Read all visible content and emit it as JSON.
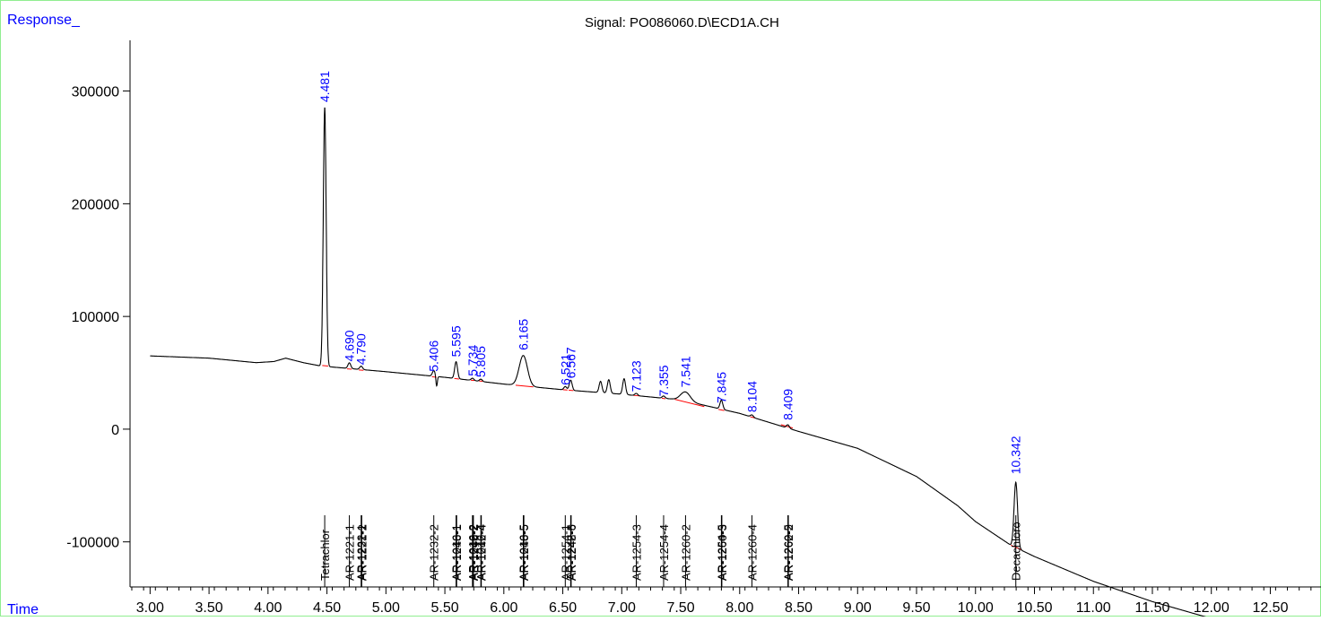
{
  "chart_data": {
    "type": "line",
    "title": "Signal: PO086060.D\\ECD1A.CH",
    "ylabel": "Response_",
    "xlabel": "Time",
    "xlim": [
      2.83,
      12.93
    ],
    "ylim": [
      -140000,
      345000
    ],
    "y_ticks": [
      300000,
      200000,
      100000,
      0,
      -100000
    ],
    "y_tick_labels": [
      "300000",
      "200000",
      "100000",
      "0",
      "-100000"
    ],
    "x_ticks": [
      3.0,
      3.5,
      4.0,
      4.5,
      5.0,
      5.5,
      6.0,
      6.5,
      7.0,
      7.5,
      8.0,
      8.5,
      9.0,
      9.5,
      10.0,
      10.5,
      11.0,
      11.5,
      12.0,
      12.5
    ],
    "x_tick_labels": [
      "3.00",
      "3.50",
      "4.00",
      "4.50",
      "5.00",
      "5.50",
      "6.00",
      "6.50",
      "7.00",
      "7.50",
      "8.00",
      "8.50",
      "9.00",
      "9.50",
      "10.00",
      "10.50",
      "11.00",
      "11.50",
      "12.00",
      "12.50"
    ],
    "baseline": [
      [
        3.0,
        65000
      ],
      [
        3.5,
        63000
      ],
      [
        3.9,
        59000
      ],
      [
        4.05,
        60000
      ],
      [
        4.15,
        63000
      ],
      [
        4.3,
        59000
      ],
      [
        4.45,
        56000
      ],
      [
        5.0,
        51000
      ],
      [
        5.5,
        46000
      ],
      [
        6.0,
        40000
      ],
      [
        6.2,
        38000
      ],
      [
        6.5,
        35000
      ],
      [
        7.0,
        31000
      ],
      [
        7.5,
        26000
      ],
      [
        8.0,
        14000
      ],
      [
        8.5,
        -2000
      ],
      [
        9.0,
        -17000
      ],
      [
        9.5,
        -42000
      ],
      [
        9.85,
        -68000
      ],
      [
        10.0,
        -82000
      ],
      [
        10.3,
        -103000
      ],
      [
        10.5,
        -113000
      ],
      [
        11.0,
        -135000
      ],
      [
        11.5,
        -153000
      ],
      [
        12.0,
        -168000
      ],
      [
        12.5,
        -174000
      ],
      [
        12.93,
        -178000
      ]
    ],
    "peaks": [
      {
        "rt": 4.481,
        "height": 230000,
        "width": 0.012
      },
      {
        "rt": 4.69,
        "height": 5000,
        "width": 0.012
      },
      {
        "rt": 4.79,
        "height": 3000,
        "width": 0.012
      },
      {
        "rt": 5.406,
        "height": 5000,
        "width": 0.012
      },
      {
        "rt": 5.595,
        "height": 15000,
        "width": 0.012
      },
      {
        "rt": 5.734,
        "height": 2000,
        "width": 0.012
      },
      {
        "rt": 5.805,
        "height": 2000,
        "width": 0.012
      },
      {
        "rt": 6.165,
        "height": 27000,
        "width": 0.035
      },
      {
        "rt": 6.521,
        "height": 3000,
        "width": 0.012
      },
      {
        "rt": 6.567,
        "height": 9000,
        "width": 0.012
      },
      {
        "rt": 6.82,
        "height": 10000,
        "width": 0.012
      },
      {
        "rt": 6.89,
        "height": 12000,
        "width": 0.012
      },
      {
        "rt": 7.02,
        "height": 14000,
        "width": 0.012
      },
      {
        "rt": 7.123,
        "height": 2000,
        "width": 0.012
      },
      {
        "rt": 7.355,
        "height": 2000,
        "width": 0.012
      },
      {
        "rt": 7.541,
        "height": 8000,
        "width": 0.04
      },
      {
        "rt": 7.845,
        "height": 8000,
        "width": 0.012
      },
      {
        "rt": 8.104,
        "height": 2000,
        "width": 0.012
      },
      {
        "rt": 8.409,
        "height": 3000,
        "width": 0.012
      },
      {
        "rt": 10.342,
        "height": 58000,
        "width": 0.015
      }
    ],
    "peak_labels": [
      {
        "text": "4.481",
        "x": 4.481,
        "y": 290000
      },
      {
        "text": "4.690",
        "x": 4.69,
        "y": 60000
      },
      {
        "text": "4.790",
        "x": 4.79,
        "y": 57000
      },
      {
        "text": "5.406",
        "x": 5.406,
        "y": 51000
      },
      {
        "text": "5.595",
        "x": 5.595,
        "y": 64000
      },
      {
        "text": "5.734",
        "x": 5.734,
        "y": 47000
      },
      {
        "text": "5.805",
        "x": 5.805,
        "y": 46000
      },
      {
        "text": "6.165",
        "x": 6.165,
        "y": 70000
      },
      {
        "text": "6.521",
        "x": 6.521,
        "y": 39000
      },
      {
        "text": "6.567",
        "x": 6.567,
        "y": 45000
      },
      {
        "text": "7.123",
        "x": 7.123,
        "y": 33000
      },
      {
        "text": "7.355",
        "x": 7.355,
        "y": 29000
      },
      {
        "text": "7.541",
        "x": 7.541,
        "y": 37000
      },
      {
        "text": "7.845",
        "x": 7.845,
        "y": 23000
      },
      {
        "text": "8.104",
        "x": 8.104,
        "y": 15000
      },
      {
        "text": "8.409",
        "x": 8.409,
        "y": 8000
      }
    ],
    "peak_label_10342": {
      "text": "10.342",
      "x": 10.342,
      "y": -40000
    },
    "compound_labels": [
      {
        "text": "Tetrachlor",
        "x": 4.481
      },
      {
        "text": "AR-1221-1",
        "x": 4.69
      },
      {
        "text": "AR-1232-1",
        "x": 4.79
      },
      {
        "text": "AR-1221-2",
        "x": 4.795
      },
      {
        "text": "AR-1232-2",
        "x": 5.406
      },
      {
        "text": "AR-1016-1",
        "x": 5.595
      },
      {
        "text": "AR-1248-1",
        "x": 5.6
      },
      {
        "text": "AR-1016-2",
        "x": 5.734
      },
      {
        "text": "AR-1242-2",
        "x": 5.738
      },
      {
        "text": "AR-1248-2",
        "x": 5.742
      },
      {
        "text": "AR-1016-4",
        "x": 5.805
      },
      {
        "text": "AR-1242-4",
        "x": 5.809
      },
      {
        "text": "AR-1016-5",
        "x": 6.165
      },
      {
        "text": "AR-1248-5",
        "x": 6.17
      },
      {
        "text": "AR-1254-1",
        "x": 6.521
      },
      {
        "text": "AR-1242-5",
        "x": 6.567
      },
      {
        "text": "AR-1248-6",
        "x": 6.571
      },
      {
        "text": "AR-1254-3",
        "x": 7.123
      },
      {
        "text": "AR-1254-4",
        "x": 7.355
      },
      {
        "text": "AR-1260-2",
        "x": 7.541
      },
      {
        "text": "AR-1254-5",
        "x": 7.845
      },
      {
        "text": "AR-1260-3",
        "x": 7.849
      },
      {
        "text": "AR-1260-4",
        "x": 8.104
      },
      {
        "text": "AR-1260-5",
        "x": 8.409
      },
      {
        "text": "AR-1262-2",
        "x": 8.413
      },
      {
        "text": "Decachloro",
        "x": 10.342
      }
    ],
    "integration_baselines": [
      [
        4.46,
        56500,
        4.51,
        56000
      ],
      [
        4.67,
        53500,
        4.71,
        53200
      ],
      [
        4.77,
        52500,
        4.81,
        52200
      ],
      [
        5.39,
        46500,
        5.43,
        46000
      ],
      [
        5.58,
        45000,
        5.62,
        44500
      ],
      [
        5.72,
        43500,
        5.75,
        43200
      ],
      [
        5.79,
        42800,
        5.82,
        42500
      ],
      [
        6.1,
        39000,
        6.25,
        37500
      ],
      [
        6.5,
        35000,
        6.54,
        34700
      ],
      [
        6.55,
        34600,
        6.59,
        34200
      ],
      [
        7.1,
        30000,
        7.15,
        29500
      ],
      [
        7.34,
        27500,
        7.37,
        27000
      ],
      [
        7.45,
        26500,
        7.7,
        20000
      ],
      [
        7.82,
        17500,
        7.87,
        16500
      ],
      [
        8.09,
        11000,
        8.13,
        10000
      ],
      [
        8.35,
        4000,
        8.45,
        1000
      ],
      [
        10.3,
        -103000,
        10.39,
        -107000
      ]
    ]
  }
}
